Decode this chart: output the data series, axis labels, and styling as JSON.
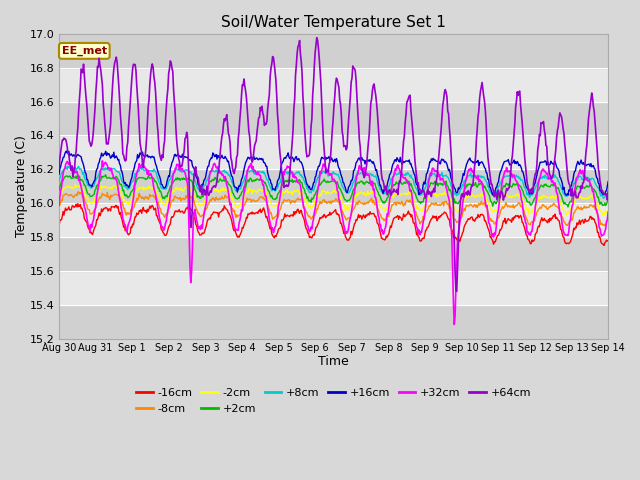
{
  "title": "Soil/Water Temperature Set 1",
  "xlabel": "Time",
  "ylabel": "Temperature (C)",
  "ylim": [
    15.2,
    17.0
  ],
  "annotation": "EE_met",
  "series_labels": [
    "-16cm",
    "-8cm",
    "-2cm",
    "+2cm",
    "+8cm",
    "+16cm",
    "+32cm",
    "+64cm"
  ],
  "series_colors": [
    "#ff0000",
    "#ff8800",
    "#ffff00",
    "#00bb00",
    "#00cccc",
    "#0000cc",
    "#ff00ff",
    "#9900cc"
  ],
  "x_ticks": [
    "Aug 30",
    "Aug 31",
    "Sep 1",
    "Sep 2",
    "Sep 3",
    "Sep 4",
    "Sep 5",
    "Sep 6",
    "Sep 7",
    "Sep 8",
    "Sep 9",
    "Sep 10",
    "Sep 11",
    "Sep 12",
    "Sep 13",
    "Sep 14"
  ],
  "bg_color": "#d8d8d8",
  "plot_bg": "#e8e8e8",
  "band_colors": [
    "#d0d0d0",
    "#e8e8e8"
  ],
  "n_points": 672,
  "figsize": [
    6.4,
    4.8
  ],
  "dpi": 100
}
